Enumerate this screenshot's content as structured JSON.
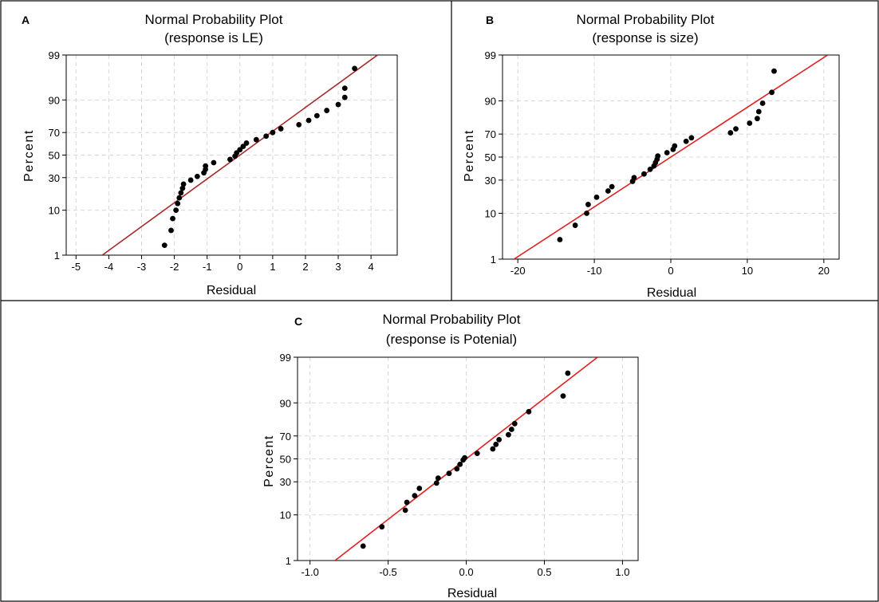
{
  "figure": {
    "panels": [
      {
        "letter": "A",
        "title": "Normal Probability Plot",
        "subtitle": "(response is LE)"
      },
      {
        "letter": "B",
        "title": "Normal Probability Plot",
        "subtitle": "(response is size)"
      },
      {
        "letter": "C",
        "title": "Normal Probability Plot",
        "subtitle": "(response is Potenial)"
      }
    ]
  },
  "colors": {
    "fit_line_A": "#a52a2a",
    "fit_line_B": "#e02020",
    "fit_line_C": "#e02020",
    "points": "#000000",
    "grid": "#d8d8d8"
  },
  "chart_data": [
    {
      "type": "scatter",
      "title": "Normal Probability Plot",
      "subtitle": "(response is LE)",
      "xlabel": "Residual",
      "ylabel": "Percent",
      "xlim": [
        -5.3,
        4.8
      ],
      "ylim": [
        1,
        99
      ],
      "y_scale": "normal-probability",
      "grid": true,
      "x_ticks": [
        "-5",
        "-4",
        "-3",
        "-2",
        "-1",
        "0",
        "1",
        "2",
        "3",
        "4"
      ],
      "y_ticks": [
        "1",
        "10",
        "30",
        "50",
        "70",
        "90",
        "99"
      ],
      "fit_line": {
        "x": [
          -4.2,
          4.2
        ],
        "percent": [
          1,
          99
        ]
      },
      "points": [
        {
          "x": -2.3,
          "percent": 1.8
        },
        {
          "x": -2.1,
          "percent": 4
        },
        {
          "x": -2.05,
          "percent": 7
        },
        {
          "x": -1.95,
          "percent": 10
        },
        {
          "x": -1.9,
          "percent": 13
        },
        {
          "x": -1.85,
          "percent": 16
        },
        {
          "x": -1.8,
          "percent": 19
        },
        {
          "x": -1.75,
          "percent": 22
        },
        {
          "x": -1.72,
          "percent": 25
        },
        {
          "x": -1.5,
          "percent": 28
        },
        {
          "x": -1.3,
          "percent": 31
        },
        {
          "x": -1.1,
          "percent": 34
        },
        {
          "x": -1.05,
          "percent": 37
        },
        {
          "x": -1.05,
          "percent": 40
        },
        {
          "x": -0.8,
          "percent": 43
        },
        {
          "x": -0.3,
          "percent": 46
        },
        {
          "x": -0.15,
          "percent": 49
        },
        {
          "x": -0.1,
          "percent": 52
        },
        {
          "x": 0.0,
          "percent": 55
        },
        {
          "x": 0.1,
          "percent": 58
        },
        {
          "x": 0.2,
          "percent": 61
        },
        {
          "x": 0.5,
          "percent": 64
        },
        {
          "x": 0.8,
          "percent": 67
        },
        {
          "x": 1.0,
          "percent": 70
        },
        {
          "x": 1.25,
          "percent": 73
        },
        {
          "x": 1.8,
          "percent": 76
        },
        {
          "x": 2.1,
          "percent": 79
        },
        {
          "x": 2.35,
          "percent": 82
        },
        {
          "x": 2.65,
          "percent": 85
        },
        {
          "x": 3.0,
          "percent": 88
        },
        {
          "x": 3.2,
          "percent": 91
        },
        {
          "x": 3.2,
          "percent": 94
        },
        {
          "x": 3.5,
          "percent": 97.8
        }
      ]
    },
    {
      "type": "scatter",
      "title": "Normal Probability Plot",
      "subtitle": "(response is size)",
      "xlabel": "Residual",
      "ylabel": "Percent",
      "xlim": [
        -22,
        22
      ],
      "ylim": [
        1,
        99
      ],
      "y_scale": "normal-probability",
      "grid": true,
      "x_ticks": [
        "-20",
        "-10",
        "0",
        "10",
        "20"
      ],
      "y_ticks": [
        "1",
        "10",
        "30",
        "50",
        "70",
        "90",
        "99"
      ],
      "fit_line": {
        "x": [
          -20.5,
          20.5
        ],
        "percent": [
          1,
          99
        ]
      },
      "points": [
        {
          "x": -14.5,
          "percent": 3
        },
        {
          "x": -12.5,
          "percent": 6
        },
        {
          "x": -11,
          "percent": 10
        },
        {
          "x": -10.8,
          "percent": 14
        },
        {
          "x": -9.7,
          "percent": 18
        },
        {
          "x": -8.2,
          "percent": 22
        },
        {
          "x": -7.7,
          "percent": 25
        },
        {
          "x": -5,
          "percent": 29
        },
        {
          "x": -4.8,
          "percent": 32
        },
        {
          "x": -3.5,
          "percent": 35
        },
        {
          "x": -2.7,
          "percent": 39
        },
        {
          "x": -2.2,
          "percent": 42
        },
        {
          "x": -2,
          "percent": 45
        },
        {
          "x": -1.8,
          "percent": 48
        },
        {
          "x": -1.7,
          "percent": 51
        },
        {
          "x": -0.5,
          "percent": 54
        },
        {
          "x": 0.3,
          "percent": 57
        },
        {
          "x": 0.5,
          "percent": 60
        },
        {
          "x": 2,
          "percent": 64
        },
        {
          "x": 2.7,
          "percent": 67
        },
        {
          "x": 7.8,
          "percent": 71
        },
        {
          "x": 8.5,
          "percent": 74
        },
        {
          "x": 10.3,
          "percent": 78
        },
        {
          "x": 11.3,
          "percent": 81
        },
        {
          "x": 11.5,
          "percent": 85
        },
        {
          "x": 12,
          "percent": 89
        },
        {
          "x": 13.2,
          "percent": 93
        },
        {
          "x": 13.5,
          "percent": 97.5
        }
      ]
    },
    {
      "type": "scatter",
      "title": "Normal Probability Plot",
      "subtitle": "(response is Potenial)",
      "xlabel": "Residual",
      "ylabel": "Percent",
      "xlim": [
        -1.08,
        1.1
      ],
      "ylim": [
        1,
        99
      ],
      "y_scale": "normal-probability",
      "grid": true,
      "x_ticks": [
        "-1.0",
        "-0.5",
        "0.0",
        "0.5",
        "1.0"
      ],
      "y_ticks": [
        "1",
        "10",
        "30",
        "50",
        "70",
        "90",
        "99"
      ],
      "fit_line": {
        "x": [
          -0.84,
          0.84
        ],
        "percent": [
          1,
          99
        ]
      },
      "points": [
        {
          "x": -0.66,
          "percent": 2.3
        },
        {
          "x": -0.54,
          "percent": 6
        },
        {
          "x": -0.39,
          "percent": 12
        },
        {
          "x": -0.38,
          "percent": 16
        },
        {
          "x": -0.33,
          "percent": 20
        },
        {
          "x": -0.3,
          "percent": 25
        },
        {
          "x": -0.19,
          "percent": 29
        },
        {
          "x": -0.18,
          "percent": 33
        },
        {
          "x": -0.11,
          "percent": 37
        },
        {
          "x": -0.06,
          "percent": 41
        },
        {
          "x": -0.04,
          "percent": 45
        },
        {
          "x": -0.02,
          "percent": 49
        },
        {
          "x": -0.01,
          "percent": 51
        },
        {
          "x": 0.07,
          "percent": 55
        },
        {
          "x": 0.17,
          "percent": 59
        },
        {
          "x": 0.19,
          "percent": 63
        },
        {
          "x": 0.21,
          "percent": 67
        },
        {
          "x": 0.27,
          "percent": 71
        },
        {
          "x": 0.29,
          "percent": 75
        },
        {
          "x": 0.31,
          "percent": 79
        },
        {
          "x": 0.4,
          "percent": 86
        },
        {
          "x": 0.62,
          "percent": 92.5
        },
        {
          "x": 0.65,
          "percent": 97.5
        }
      ]
    }
  ]
}
